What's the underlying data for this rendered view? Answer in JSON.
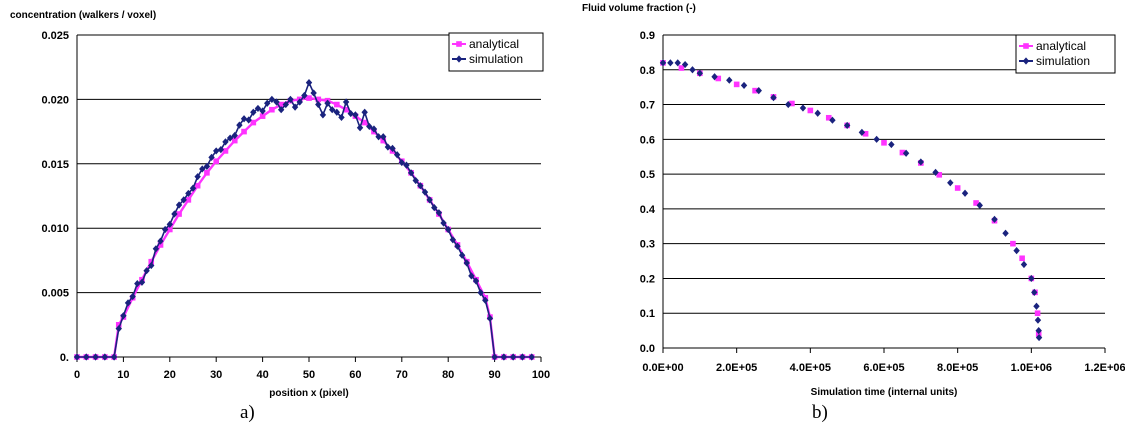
{
  "chart_data": [
    {
      "type": "line",
      "title": "",
      "ylabel": "concentration (walkers / voxel)",
      "xlabel": "position x (pixel)",
      "caption": "a)",
      "xlim": [
        0,
        100
      ],
      "ylim": [
        0,
        0.025
      ],
      "x_ticks": [
        "0",
        "10",
        "20",
        "30",
        "40",
        "50",
        "60",
        "70",
        "80",
        "90",
        "100"
      ],
      "y_ticks": [
        "0.",
        "0.005",
        "0.010",
        "0.015",
        "0.020",
        "0.025"
      ],
      "grid": "horizontal",
      "legend_position": "top-right",
      "series_colors": [
        "#ff33ff",
        "#1a237e"
      ],
      "series": [
        {
          "name": "analytical",
          "marker": "square",
          "x": [
            0,
            2,
            4,
            6,
            8,
            9,
            10,
            12,
            14,
            16,
            18,
            20,
            22,
            24,
            26,
            28,
            30,
            32,
            34,
            36,
            38,
            40,
            42,
            44,
            46,
            48,
            50,
            52,
            54,
            56,
            58,
            60,
            62,
            64,
            66,
            68,
            70,
            72,
            74,
            76,
            78,
            80,
            82,
            84,
            86,
            88,
            89,
            90,
            92,
            94,
            96,
            98
          ],
          "y": [
            0,
            0,
            0,
            0,
            0,
            0.0025,
            0.0031,
            0.0046,
            0.006,
            0.0074,
            0.0087,
            0.0099,
            0.0111,
            0.0122,
            0.0133,
            0.0143,
            0.0152,
            0.016,
            0.0168,
            0.0175,
            0.0182,
            0.0187,
            0.0192,
            0.0196,
            0.0199,
            0.02,
            0.0201,
            0.02,
            0.0199,
            0.0196,
            0.0192,
            0.0187,
            0.0182,
            0.0175,
            0.0168,
            0.016,
            0.0152,
            0.0143,
            0.0133,
            0.0122,
            0.0111,
            0.0099,
            0.0087,
            0.0074,
            0.006,
            0.0046,
            0.0031,
            0,
            0,
            0,
            0,
            0
          ]
        },
        {
          "name": "simulation",
          "marker": "diamond",
          "x": [
            0,
            2,
            4,
            6,
            8,
            9,
            10,
            11,
            12,
            13,
            14,
            15,
            16,
            17,
            18,
            19,
            20,
            21,
            22,
            23,
            24,
            25,
            26,
            27,
            28,
            29,
            30,
            31,
            32,
            33,
            34,
            35,
            36,
            37,
            38,
            39,
            40,
            41,
            42,
            43,
            44,
            45,
            46,
            47,
            48,
            49,
            50,
            51,
            52,
            53,
            54,
            55,
            56,
            57,
            58,
            59,
            60,
            61,
            62,
            63,
            64,
            65,
            66,
            67,
            68,
            69,
            70,
            71,
            72,
            73,
            74,
            75,
            76,
            77,
            78,
            79,
            80,
            81,
            82,
            83,
            84,
            85,
            86,
            87,
            88,
            89,
            90,
            92,
            94,
            96,
            98
          ],
          "y": [
            0,
            0,
            0,
            0,
            0,
            0.0022,
            0.0032,
            0.0042,
            0.0047,
            0.0057,
            0.0058,
            0.0067,
            0.0071,
            0.0084,
            0.009,
            0.0099,
            0.0103,
            0.0111,
            0.0118,
            0.0122,
            0.0127,
            0.0131,
            0.014,
            0.0146,
            0.0148,
            0.0155,
            0.016,
            0.0161,
            0.0167,
            0.017,
            0.0172,
            0.018,
            0.0185,
            0.0184,
            0.019,
            0.0193,
            0.0191,
            0.0197,
            0.02,
            0.0198,
            0.0192,
            0.0196,
            0.02,
            0.0194,
            0.0198,
            0.0203,
            0.0213,
            0.0205,
            0.0196,
            0.0188,
            0.0197,
            0.0192,
            0.019,
            0.0186,
            0.0198,
            0.0189,
            0.0188,
            0.0178,
            0.019,
            0.0179,
            0.0177,
            0.0171,
            0.0171,
            0.0163,
            0.0162,
            0.0157,
            0.0151,
            0.0149,
            0.0143,
            0.0137,
            0.0133,
            0.0128,
            0.0122,
            0.0116,
            0.0112,
            0.0104,
            0.0099,
            0.0091,
            0.0086,
            0.0079,
            0.0073,
            0.0063,
            0.0059,
            0.005,
            0.0044,
            0.003,
            0,
            0,
            0,
            0,
            0
          ]
        }
      ]
    },
    {
      "type": "scatter",
      "title": "",
      "ylabel": "Fluid volume fraction  (-)",
      "xlabel": "Simulation time  (internal units)",
      "caption": "b)",
      "xlim": [
        0,
        1200000
      ],
      "ylim": [
        0,
        0.9
      ],
      "x_ticks": [
        "0.0E+00",
        "2.0E+05",
        "4.0E+05",
        "6.0E+05",
        "8.0E+05",
        "1.0E+06",
        "1.2E+06"
      ],
      "y_ticks": [
        "0.0",
        "0.1",
        "0.2",
        "0.3",
        "0.4",
        "0.5",
        "0.6",
        "0.7",
        "0.8",
        "0.9"
      ],
      "grid": "horizontal",
      "legend_position": "top-right",
      "series_colors": [
        "#ff33ff",
        "#1a237e"
      ],
      "series": [
        {
          "name": "analytical",
          "marker": "square",
          "x": [
            0,
            50000,
            100000,
            150000,
            200000,
            250000,
            300000,
            350000,
            400000,
            450000,
            500000,
            550000,
            600000,
            650000,
            700000,
            750000,
            800000,
            850000,
            900000,
            950000,
            975000,
            1000000,
            1010000,
            1017000,
            1020000
          ],
          "y": [
            0.82,
            0.805,
            0.79,
            0.775,
            0.758,
            0.74,
            0.722,
            0.703,
            0.683,
            0.662,
            0.64,
            0.616,
            0.59,
            0.562,
            0.532,
            0.498,
            0.46,
            0.417,
            0.366,
            0.3,
            0.258,
            0.2,
            0.16,
            0.1,
            0.04
          ]
        },
        {
          "name": "simulation",
          "marker": "diamond",
          "x": [
            0,
            20000,
            40000,
            60000,
            80000,
            100000,
            140000,
            180000,
            220000,
            260000,
            300000,
            340000,
            380000,
            420000,
            460000,
            500000,
            540000,
            580000,
            620000,
            660000,
            700000,
            740000,
            780000,
            820000,
            860000,
            900000,
            930000,
            960000,
            980000,
            1000000,
            1008000,
            1014000,
            1018000,
            1020000,
            1021000
          ],
          "y": [
            0.82,
            0.82,
            0.82,
            0.815,
            0.8,
            0.79,
            0.78,
            0.77,
            0.755,
            0.74,
            0.72,
            0.7,
            0.69,
            0.675,
            0.655,
            0.64,
            0.62,
            0.6,
            0.585,
            0.56,
            0.535,
            0.505,
            0.475,
            0.445,
            0.41,
            0.37,
            0.33,
            0.28,
            0.24,
            0.2,
            0.16,
            0.12,
            0.08,
            0.05,
            0.03
          ]
        }
      ]
    }
  ]
}
